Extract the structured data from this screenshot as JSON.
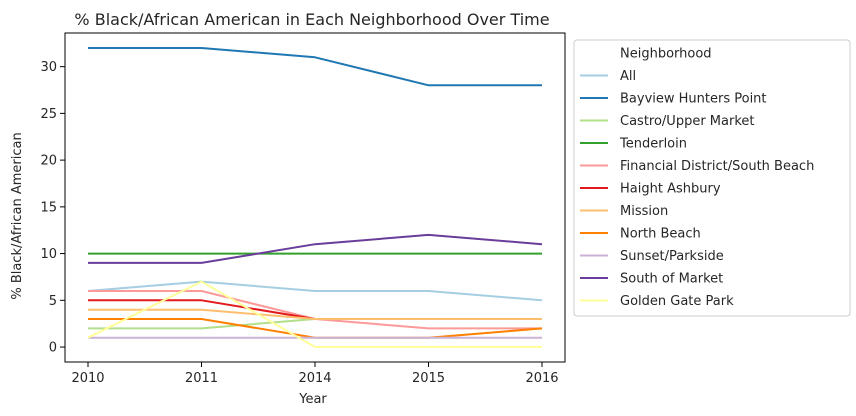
{
  "chart_data": {
    "type": "line",
    "title": "% Black/African American in Each Neighborhood Over Time",
    "xlabel": "Year",
    "ylabel": "% Black/African American",
    "categories": [
      "2010",
      "2011",
      "2014",
      "2015",
      "2016"
    ],
    "ylim": [
      -1.6,
      33.6
    ],
    "yticks": [
      0,
      5,
      10,
      15,
      20,
      25,
      30
    ],
    "grid": false,
    "legend": {
      "title": "Neighborhood",
      "placement": "outside-right"
    },
    "series": [
      {
        "name": "All",
        "color": "#a6cee3",
        "values": [
          6,
          7,
          6,
          6,
          5
        ]
      },
      {
        "name": "Bayview Hunters Point",
        "color": "#1f78b4",
        "values": [
          32,
          32,
          31,
          28,
          28
        ]
      },
      {
        "name": "Castro/Upper Market",
        "color": "#b2df8a",
        "values": [
          2,
          2,
          3,
          3,
          3
        ]
      },
      {
        "name": "Tenderloin",
        "color": "#33a02c",
        "values": [
          10,
          10,
          10,
          10,
          10
        ]
      },
      {
        "name": "Financial District/South Beach",
        "color": "#fb9a99",
        "values": [
          6,
          6,
          3,
          2,
          2
        ]
      },
      {
        "name": "Haight Ashbury",
        "color": "#e31a1c",
        "values": [
          5,
          5,
          3,
          3,
          3
        ]
      },
      {
        "name": "Mission",
        "color": "#fdbf6f",
        "values": [
          4,
          4,
          3,
          3,
          3
        ]
      },
      {
        "name": "North Beach",
        "color": "#ff7f00",
        "values": [
          3,
          3,
          1,
          1,
          2
        ]
      },
      {
        "name": "Sunset/Parkside",
        "color": "#cab2d6",
        "values": [
          1,
          1,
          1,
          1,
          1
        ]
      },
      {
        "name": "South of Market",
        "color": "#6a3d9a",
        "values": [
          9,
          9,
          11,
          12,
          11
        ]
      },
      {
        "name": "Golden Gate Park",
        "color": "#ffff99",
        "values": [
          1,
          7,
          0,
          0,
          0
        ]
      }
    ]
  }
}
